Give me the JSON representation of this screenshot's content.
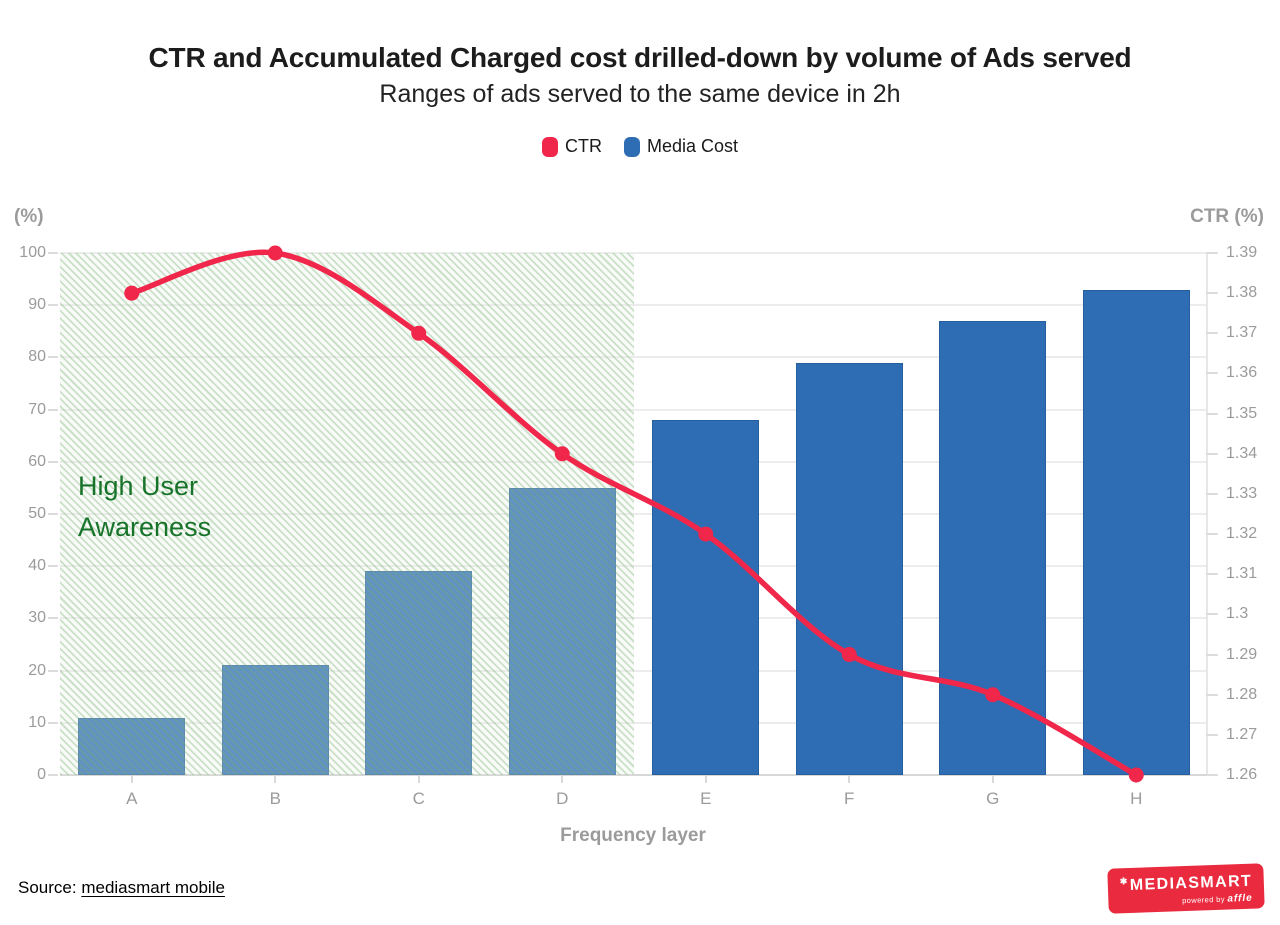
{
  "header": {
    "title": "CTR and Accumulated Charged cost drilled-down by volume of Ads served",
    "subtitle": "Ranges of ads served to the same device in 2h"
  },
  "legend": {
    "items": [
      {
        "label": "CTR",
        "color": "#f0274a"
      },
      {
        "label": "Media Cost",
        "color": "#2e6db3"
      }
    ]
  },
  "chart_data": {
    "type": "combo-bar-line",
    "title": "CTR and Accumulated Charged cost drilled-down by volume of Ads served",
    "subtitle": "Ranges of ads served to the same device in 2h",
    "categories": [
      "A",
      "B",
      "C",
      "D",
      "E",
      "F",
      "G",
      "H"
    ],
    "series": [
      {
        "name": "Media Cost",
        "type": "bar",
        "axis": "left",
        "color": "#2e6db3",
        "values": [
          11,
          21,
          39,
          55,
          68,
          79,
          87,
          93
        ]
      },
      {
        "name": "CTR",
        "type": "line",
        "axis": "right",
        "color": "#f0274a",
        "values": [
          1.38,
          1.39,
          1.37,
          1.34,
          1.32,
          1.29,
          1.28,
          1.26
        ]
      }
    ],
    "xlabel": "Frequency layer",
    "axis_left": {
      "title": "(%)",
      "min": 0,
      "max": 100,
      "ticks": [
        "100",
        "90",
        "80",
        "70",
        "60",
        "50",
        "40",
        "30",
        "20",
        "10",
        "0"
      ]
    },
    "axis_right": {
      "title": "CTR (%)",
      "min": 1.26,
      "max": 1.39,
      "ticks": [
        "1.39",
        "1.38",
        "1.37",
        "1.36",
        "1.35",
        "1.34",
        "1.33",
        "1.32",
        "1.31",
        "1.3",
        "1.29",
        "1.28",
        "1.27",
        "1.26"
      ]
    },
    "annotation": {
      "label": "High User Awareness",
      "from_category": "A",
      "to_category": "D",
      "text_color": "#177329"
    },
    "grid": true,
    "legend_position": "top"
  },
  "footer": {
    "source_prefix": "Source:",
    "source_link": "mediasmart mobile",
    "logo_brand": "MEDIASMART",
    "logo_tagline_prefix": "powered by",
    "logo_tagline_brand": "affle"
  }
}
